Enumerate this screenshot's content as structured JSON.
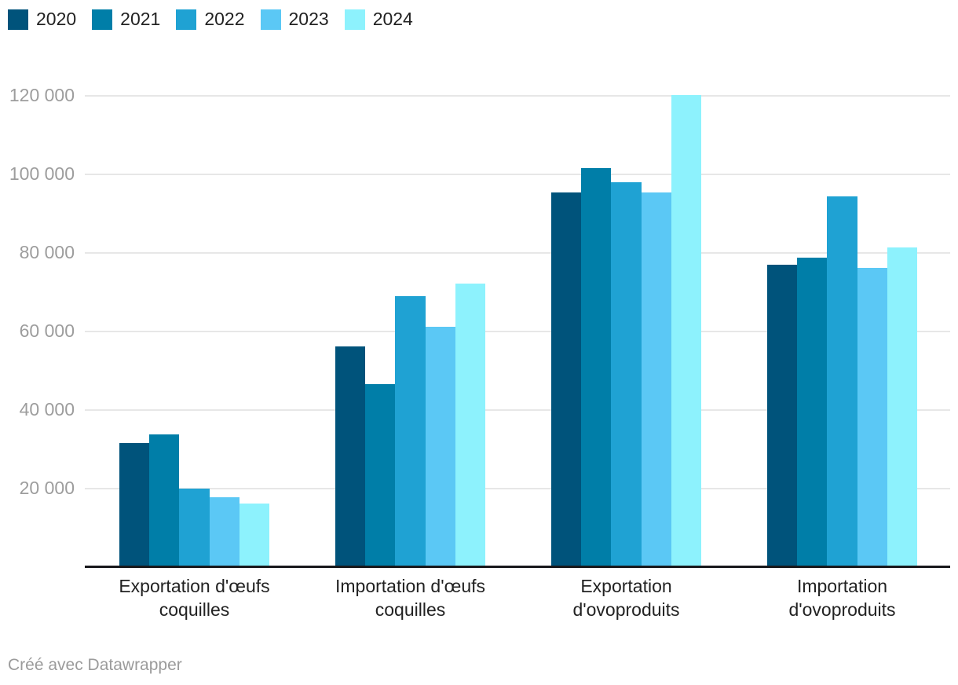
{
  "chart_data": {
    "type": "bar",
    "title": "",
    "xlabel": "",
    "ylabel": "",
    "categories": [
      "Exportation d'œufs coquilles",
      "Importation d'œufs coquilles",
      "Exportation d'ovoproduits",
      "Importation d'ovoproduits"
    ],
    "series": [
      {
        "name": "2020",
        "color": "#00537b",
        "values": [
          31700,
          56200,
          95500,
          77100
        ]
      },
      {
        "name": "2021",
        "color": "#007ea8",
        "values": [
          33800,
          46700,
          101700,
          78900
        ]
      },
      {
        "name": "2022",
        "color": "#1fa2d3",
        "values": [
          20100,
          69000,
          98100,
          94500
        ]
      },
      {
        "name": "2023",
        "color": "#5bc8f5",
        "values": [
          17800,
          61300,
          95400,
          76200
        ]
      },
      {
        "name": "2024",
        "color": "#8df2fd",
        "values": [
          16300,
          72200,
          120300,
          81500
        ]
      }
    ],
    "ylim": [
      0,
      125000
    ],
    "yticks": [
      20000,
      40000,
      60000,
      80000,
      100000,
      120000
    ],
    "ytick_labels": [
      "20 000",
      "40 000",
      "60 000",
      "80 000",
      "100 000",
      "120 000"
    ],
    "grid": "horizontal",
    "legend_position": "top-left"
  },
  "footer": {
    "attribution": "Créé avec Datawrapper"
  },
  "colors": {
    "background": "#ffffff",
    "gridline": "#e7e7e7",
    "axis_line": "#18181b",
    "tick_label": "#9d9d9d",
    "category_label": "#222222",
    "footer_text": "#9b9b9b"
  }
}
